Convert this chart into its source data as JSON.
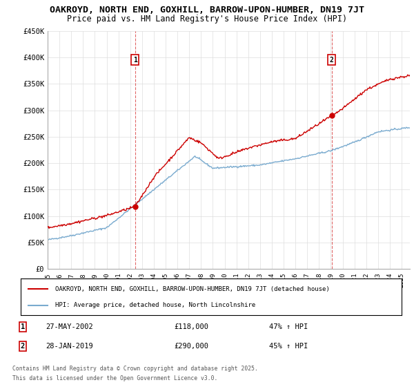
{
  "title": "OAKROYD, NORTH END, GOXHILL, BARROW-UPON-HUMBER, DN19 7JT",
  "subtitle": "Price paid vs. HM Land Registry's House Price Index (HPI)",
  "ylim": [
    0,
    450000
  ],
  "yticks": [
    0,
    50000,
    100000,
    150000,
    200000,
    250000,
    300000,
    350000,
    400000,
    450000
  ],
  "ytick_labels": [
    "£0",
    "£50K",
    "£100K",
    "£150K",
    "£200K",
    "£250K",
    "£300K",
    "£350K",
    "£400K",
    "£450K"
  ],
  "sale1_date": "27-MAY-2002",
  "sale1_price": 118000,
  "sale1_hpi": "47% ↑ HPI",
  "sale1_x": 2002.41,
  "sale2_date": "28-JAN-2019",
  "sale2_price": 290000,
  "sale2_hpi": "45% ↑ HPI",
  "sale2_x": 2019.07,
  "legend_label_red": "OAKROYD, NORTH END, GOXHILL, BARROW-UPON-HUMBER, DN19 7JT (detached house)",
  "legend_label_blue": "HPI: Average price, detached house, North Lincolnshire",
  "footnote_line1": "Contains HM Land Registry data © Crown copyright and database right 2025.",
  "footnote_line2": "This data is licensed under the Open Government Licence v3.0.",
  "red_color": "#cc0000",
  "blue_color": "#7aabcf",
  "bg_color": "#ffffff",
  "grid_color": "#dddddd",
  "title_fontsize": 9.5,
  "subtitle_fontsize": 8.5,
  "xlim_left": 1995,
  "xlim_right": 2025.7
}
